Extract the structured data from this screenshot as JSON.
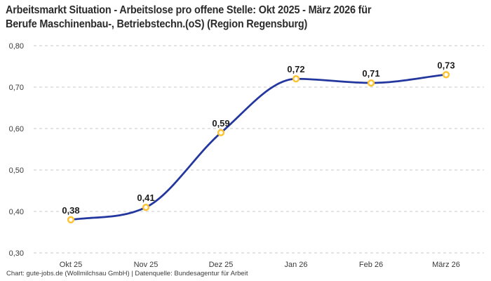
{
  "chart_data": {
    "type": "line",
    "title": "Arbeitsmarkt Situation - Arbeitslose pro offene Stelle: Okt 2025 - März 2026 für Berufe Maschinenbau-, Betriebstechn.(oS) (Region Regensburg)",
    "title_lines": [
      "Arbeitsmarkt Situation - Arbeitslose pro offene Stelle: Okt 2025 - März 2026 für",
      "Berufe Maschinenbau-, Betriebstechn.(oS) (Region Regensburg)"
    ],
    "categories": [
      "Okt 25",
      "Nov 25",
      "Dez 25",
      "Jan 26",
      "Feb 26",
      "März 26"
    ],
    "values": [
      0.38,
      0.41,
      0.59,
      0.72,
      0.71,
      0.73
    ],
    "value_labels": [
      "0,38",
      "0,41",
      "0,59",
      "0,72",
      "0,71",
      "0,73"
    ],
    "y_ticks": [
      {
        "value": 0.3,
        "label": "0,30"
      },
      {
        "value": 0.4,
        "label": "0,40"
      },
      {
        "value": 0.5,
        "label": "0,50"
      },
      {
        "value": 0.6,
        "label": "0,60"
      },
      {
        "value": 0.7,
        "label": "0,70"
      },
      {
        "value": 0.8,
        "label": "0,80"
      }
    ],
    "ylim": [
      0.3,
      0.8
    ],
    "xlabel": "",
    "ylabel": "",
    "legend": "none",
    "grid": "horizontal-dashed",
    "curve": "smooth-monotone"
  },
  "footer": {
    "attribution": "Chart: gute-jobs.de (Wollmilchsau GmbH) | Datenquelle: Bundesagentur für Arbeit"
  },
  "colors": {
    "line": "#23379f",
    "marker_ring": "#fdc331",
    "marker_fill": "#ffffff",
    "grid": "#c9c9c9",
    "title_text": "#2b2b2b",
    "axis_text": "#3a3a3a",
    "value_label_text": "#1d1d1d",
    "footer_text": "#3b3b3b",
    "background": "#ffffff"
  }
}
